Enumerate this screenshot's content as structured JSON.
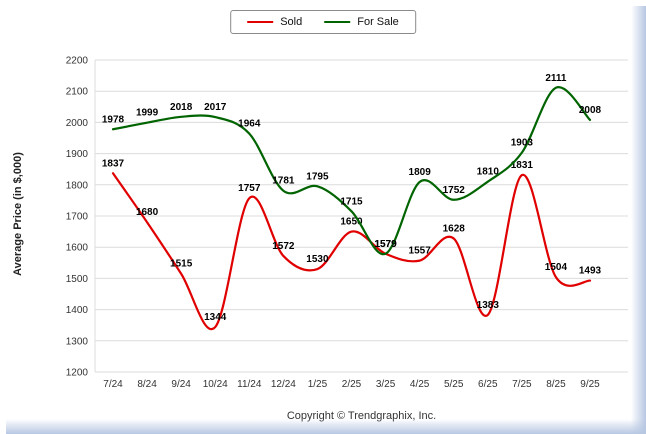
{
  "legend": {
    "items": [
      {
        "label": "Sold",
        "color": "#e00000"
      },
      {
        "label": "For Sale",
        "color": "#006400"
      }
    ]
  },
  "copyright": "Copyright © Trendgraphix, Inc.",
  "chart_data": {
    "type": "line",
    "title": "",
    "ylabel": "Average Price (in $,000)",
    "xlabel": "",
    "categories": [
      "7/24",
      "8/24",
      "9/24",
      "10/24",
      "11/24",
      "12/24",
      "1/25",
      "2/25",
      "3/25",
      "4/25",
      "5/25",
      "6/25",
      "7/25",
      "8/25",
      "9/25"
    ],
    "series": [
      {
        "name": "Sold",
        "color": "#e00000",
        "values": [
          1837,
          1680,
          1515,
          1344,
          1757,
          1572,
          1530,
          1650,
          1579,
          1557,
          1628,
          1383,
          1831,
          1504,
          1493
        ]
      },
      {
        "name": "For Sale",
        "color": "#006400",
        "values": [
          1978,
          1999,
          2018,
          2017,
          1964,
          1781,
          1795,
          1715,
          1579,
          1809,
          1752,
          1810,
          1903,
          2111,
          2008
        ]
      }
    ],
    "ylim": [
      1200,
      2200
    ],
    "yticks": [
      1200,
      1300,
      1400,
      1500,
      1600,
      1700,
      1800,
      1900,
      2000,
      2100,
      2200
    ],
    "grid": true,
    "legend_position": "top-center"
  }
}
